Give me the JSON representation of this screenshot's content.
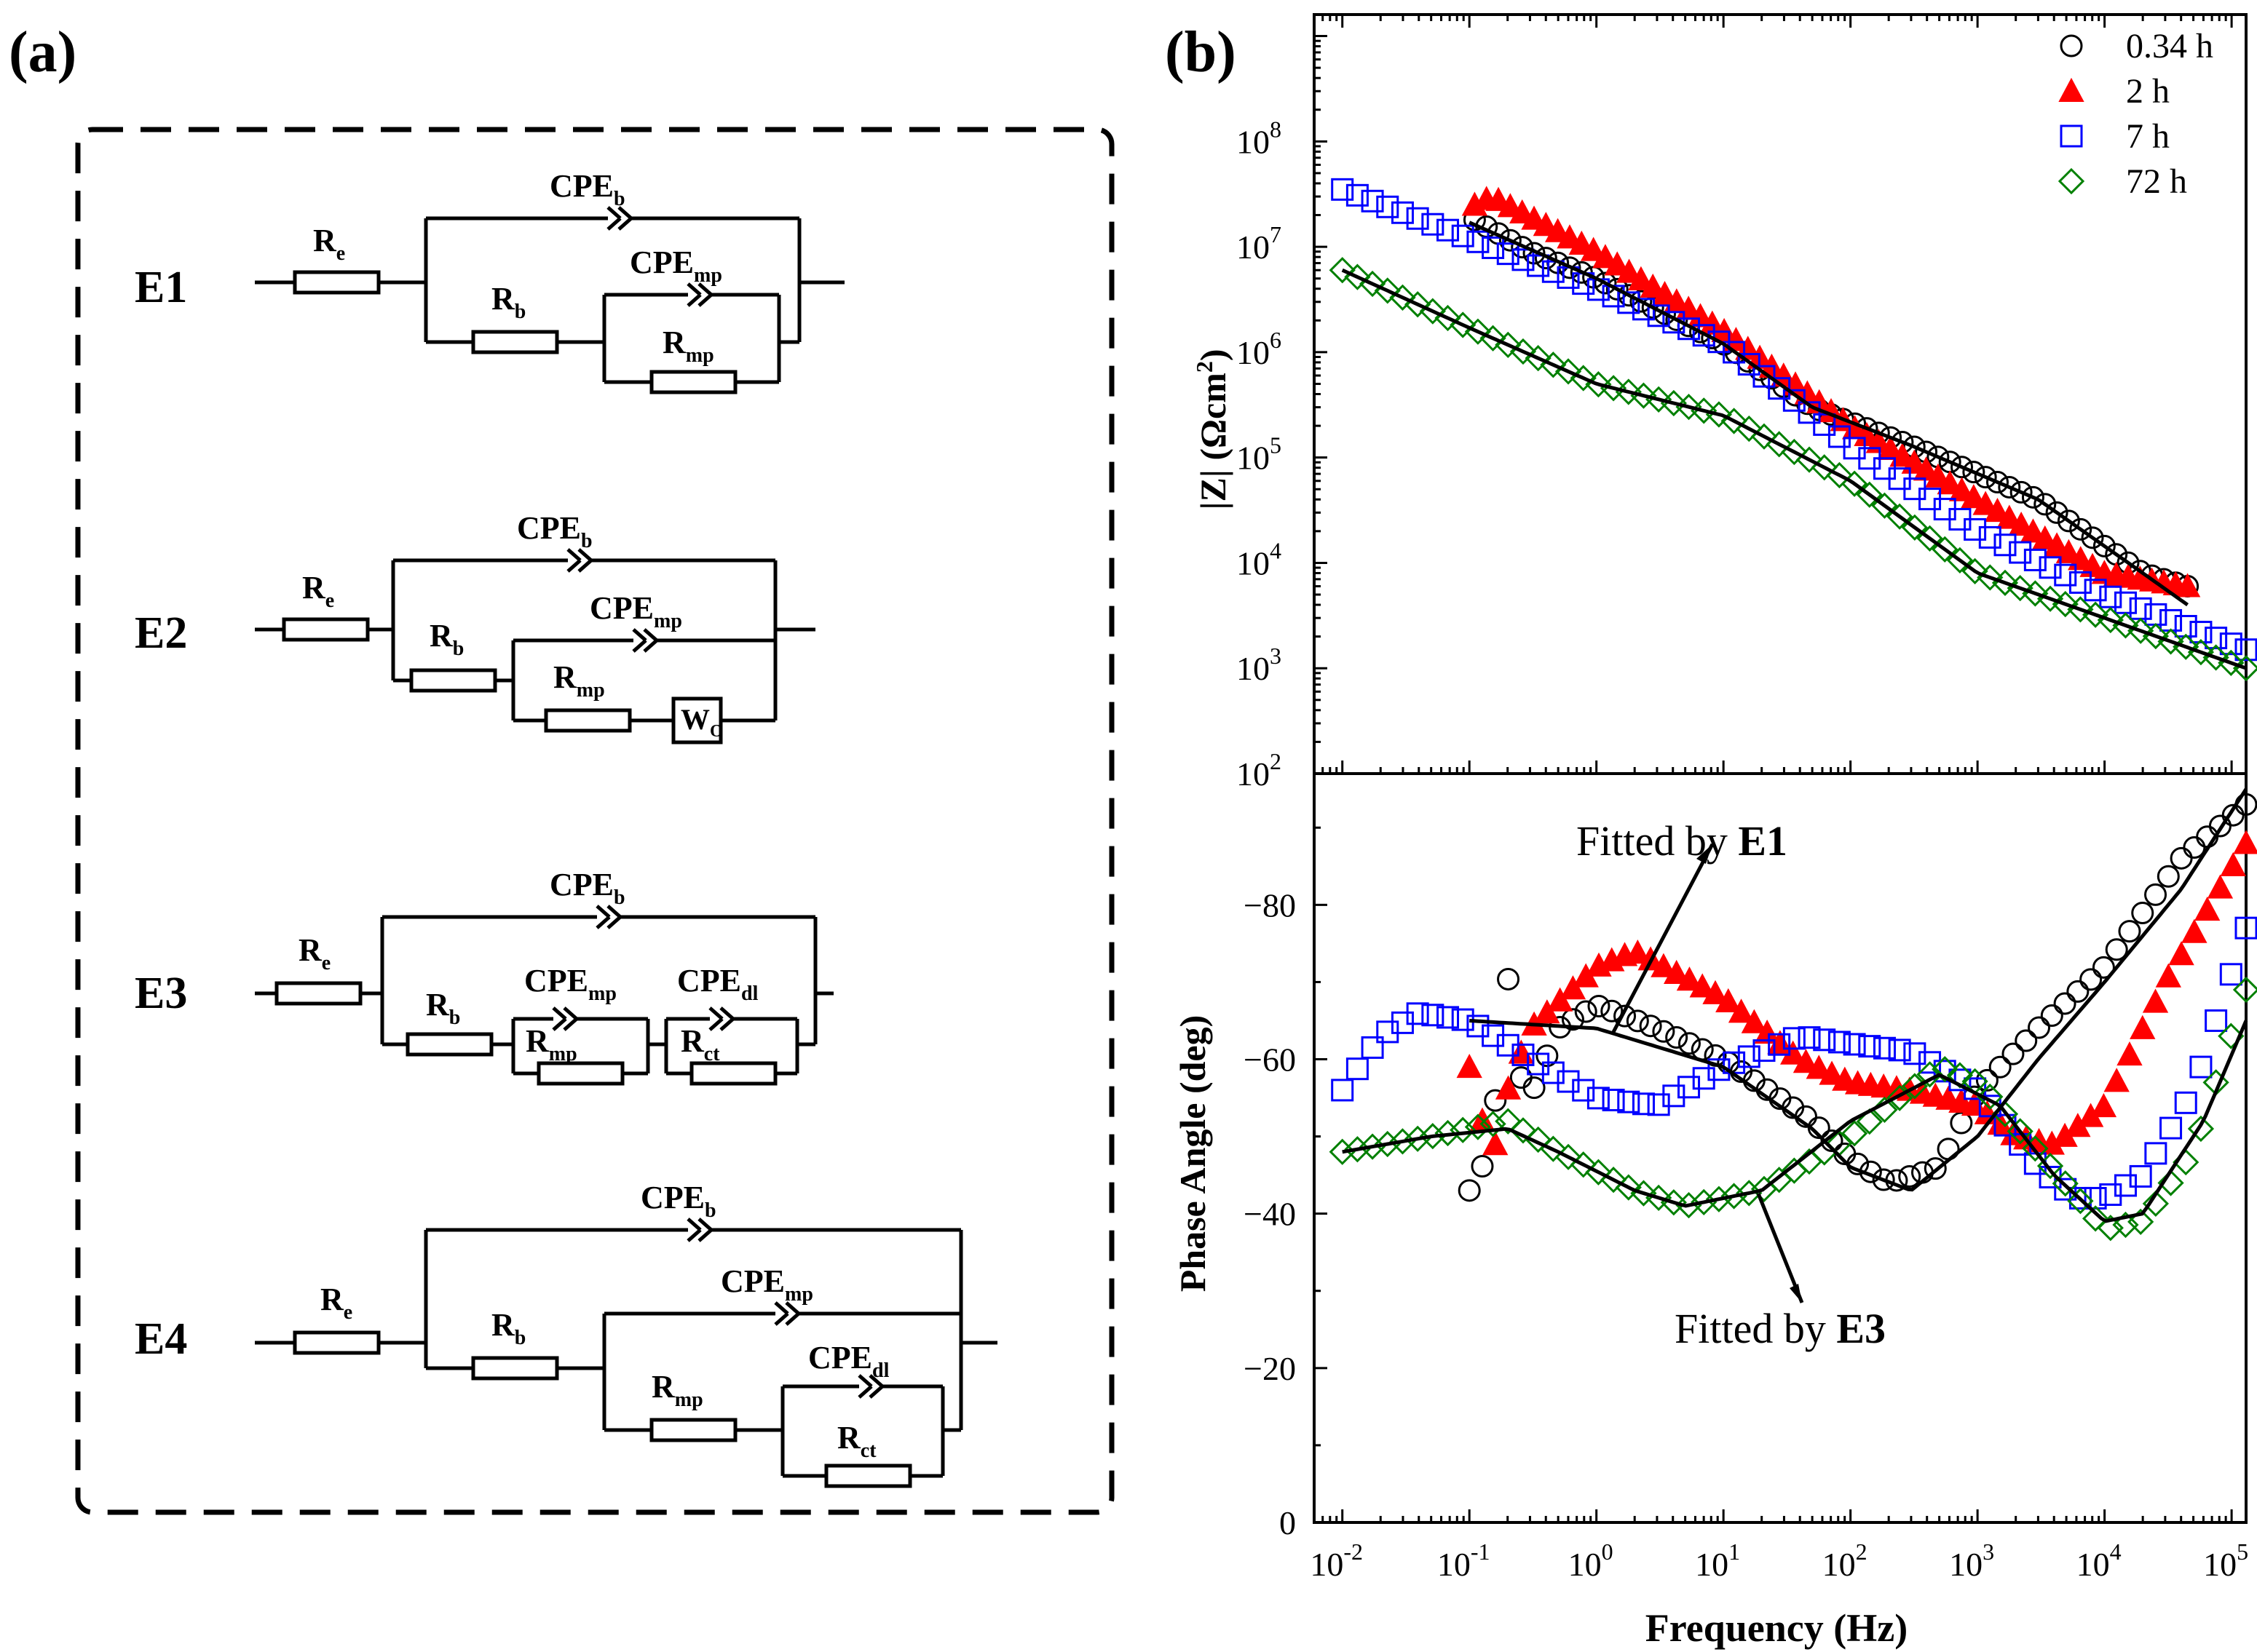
{
  "panel_a": {
    "label": "(a)",
    "circuits": [
      {
        "id": "E1",
        "parts": {
          "re": "R",
          "re_sub": "e",
          "cpeb": "CPE",
          "cpeb_sub": "b",
          "rb": "R",
          "rb_sub": "b",
          "cpemp": "CPE",
          "cpemp_sub": "mp",
          "rmp": "R",
          "rmp_sub": "mp"
        }
      },
      {
        "id": "E2",
        "parts": {
          "re": "R",
          "re_sub": "e",
          "cpeb": "CPE",
          "cpeb_sub": "b",
          "rb": "R",
          "rb_sub": "b",
          "cpemp": "CPE",
          "cpemp_sub": "mp",
          "rmp": "R",
          "rmp_sub": "mp",
          "wo": "W",
          "wo_sub": "O"
        }
      },
      {
        "id": "E3",
        "parts": {
          "re": "R",
          "re_sub": "e",
          "cpeb": "CPE",
          "cpeb_sub": "b",
          "rb": "R",
          "rb_sub": "b",
          "cpemp": "CPE",
          "cpemp_sub": "mp",
          "rmp": "R",
          "rmp_sub": "mp",
          "cpedl": "CPE",
          "cpedl_sub": "dl",
          "rct": "R",
          "rct_sub": "ct"
        }
      },
      {
        "id": "E4",
        "parts": {
          "re": "R",
          "re_sub": "e",
          "cpeb": "CPE",
          "cpeb_sub": "b",
          "rb": "R",
          "rb_sub": "b",
          "cpemp": "CPE",
          "cpemp_sub": "mp",
          "rmp": "R",
          "rmp_sub": "mp",
          "cpedl": "CPE",
          "cpedl_sub": "dl",
          "rct": "R",
          "rct_sub": "ct"
        }
      }
    ]
  },
  "panel_b": {
    "label": "(b)",
    "annotations": {
      "e1": {
        "text": "Fitted by ",
        "bold": "E1"
      },
      "e3": {
        "text": "Fitted by ",
        "bold": "E3"
      }
    }
  },
  "colors": {
    "s034": "#000000",
    "s2": "#ff0000",
    "s7": "#0000ff",
    "s72": "#008000",
    "fit": "#000000"
  },
  "chart_data": [
    {
      "type": "scatter",
      "title": "",
      "xlabel": "Frequency (Hz)",
      "xscale": "log",
      "xlim": [
        0.006,
        130000
      ],
      "ylabel": "|Z| (Ωcm²)",
      "ylabel_parts": {
        "main": "|Z| (Ωcm",
        "sup": "2",
        "end": ")"
      },
      "yscale": "log",
      "ylim": [
        100,
        1600000000.0
      ],
      "yticks": [
        {
          "base": "10",
          "exp": "2",
          "v": 100
        },
        {
          "base": "10",
          "exp": "3",
          "v": 1000
        },
        {
          "base": "10",
          "exp": "4",
          "v": 10000
        },
        {
          "base": "10",
          "exp": "5",
          "v": 100000
        },
        {
          "base": "10",
          "exp": "6",
          "v": 1000000
        },
        {
          "base": "10",
          "exp": "7",
          "v": 10000000
        },
        {
          "base": "10",
          "exp": "8",
          "v": 100000000
        }
      ],
      "legend_position": "top-right",
      "series": [
        {
          "name": "0.34 h",
          "marker": "circle",
          "color": "#000000",
          "fmin": 0.11,
          "fmax": 45000,
          "points": [
            [
              0.11,
              18000000.0
            ],
            [
              0.3,
              9000000.0
            ],
            [
              1,
              5000000.0
            ],
            [
              10,
              1200000.0
            ],
            [
              50,
              300000.0
            ],
            [
              300,
              130000.0
            ],
            [
              3000,
              40000.0
            ],
            [
              20000,
              8000
            ],
            [
              45000,
              6000
            ]
          ]
        },
        {
          "name": "2 h",
          "marker": "triangle",
          "color": "#ff0000",
          "fmin": 0.11,
          "fmax": 45000,
          "points": [
            [
              0.11,
              25000000.0
            ],
            [
              0.15,
              30000000.0
            ],
            [
              1,
              9000000.0
            ],
            [
              10,
              1600000.0
            ],
            [
              100,
              200000.0
            ],
            [
              1000,
              40000.0
            ],
            [
              10000,
              8000
            ],
            [
              45000,
              6000
            ]
          ]
        },
        {
          "name": "7 h",
          "marker": "square",
          "color": "#0000ff",
          "fmin": 0.01,
          "fmax": 130000,
          "points": [
            [
              0.01,
              35000000.0
            ],
            [
              0.1,
              12000000.0
            ],
            [
              1,
              4000000.0
            ],
            [
              10,
              1200000.0
            ],
            [
              100,
              130000.0
            ],
            [
              1000,
              20000.0
            ],
            [
              10000,
              5000
            ],
            [
              130000,
              1500
            ]
          ]
        },
        {
          "name": "72 h",
          "marker": "diamond",
          "color": "#008000",
          "fmin": 0.01,
          "fmax": 130000,
          "points": [
            [
              0.01,
              6000000.0
            ],
            [
              0.1,
              1700000.0
            ],
            [
              1,
              500000.0
            ],
            [
              10,
              250000.0
            ],
            [
              100,
              60000.0
            ],
            [
              1000,
              8000
            ],
            [
              10000,
              3000
            ],
            [
              130000,
              1000
            ]
          ]
        }
      ],
      "fits": [
        {
          "name": "fit 0.34 h",
          "fmin": 0.1,
          "fmax": 45000,
          "points": [
            [
              0.1,
              17000000.0
            ],
            [
              1,
              5000000.0
            ],
            [
              10,
              1200000.0
            ],
            [
              50,
              300000.0
            ],
            [
              300,
              130000.0
            ],
            [
              3000,
              40000.0
            ],
            [
              20000,
              8000
            ],
            [
              45000,
              4000
            ]
          ]
        },
        {
          "name": "fit 72 h",
          "fmin": 0.01,
          "fmax": 130000,
          "points": [
            [
              0.01,
              6000000.0
            ],
            [
              0.1,
              1700000.0
            ],
            [
              1,
              500000.0
            ],
            [
              10,
              250000.0
            ],
            [
              100,
              60000.0
            ],
            [
              1000,
              8000
            ],
            [
              10000,
              3000
            ],
            [
              130000,
              1000
            ]
          ]
        }
      ]
    },
    {
      "type": "scatter",
      "title": "",
      "xlabel": "Frequency (Hz)",
      "xscale": "log",
      "xlim": [
        0.006,
        130000
      ],
      "xticks": [
        {
          "base": "10",
          "exp": "-2",
          "v": 0.01
        },
        {
          "base": "10",
          "exp": "-1",
          "v": 0.1
        },
        {
          "base": "10",
          "exp": "0",
          "v": 1
        },
        {
          "base": "10",
          "exp": "1",
          "v": 10
        },
        {
          "base": "10",
          "exp": "2",
          "v": 100
        },
        {
          "base": "10",
          "exp": "3",
          "v": 1000
        },
        {
          "base": "10",
          "exp": "4",
          "v": 10000
        },
        {
          "base": "10",
          "exp": "5",
          "v": 100000
        }
      ],
      "ylabel": "Phase Angle (deg)",
      "ylim": [
        0,
        -97
      ],
      "yticks": [
        {
          "label": "0",
          "v": 0
        },
        {
          "label": "−20",
          "v": -20
        },
        {
          "label": "−40",
          "v": -40
        },
        {
          "label": "−60",
          "v": -60
        },
        {
          "label": "−80",
          "v": -80
        }
      ],
      "series": [
        {
          "name": "0.34 h",
          "marker": "circle",
          "color": "#000000",
          "fmin": 0.1,
          "fmax": 130000,
          "points": [
            [
              0.11,
              -43
            ],
            [
              0.15,
              -50
            ],
            [
              0.2,
              -71
            ],
            [
              0.25,
              -58
            ],
            [
              0.3,
              -55
            ],
            [
              0.5,
              -64
            ],
            [
              1,
              -67
            ],
            [
              3,
              -64
            ],
            [
              10,
              -60
            ],
            [
              50,
              -52
            ],
            [
              100,
              -47
            ],
            [
              200,
              -44
            ],
            [
              500,
              -46
            ],
            [
              1000,
              -56
            ],
            [
              3000,
              -64
            ],
            [
              10000,
              -72
            ],
            [
              40000,
              -86
            ],
            [
              130000,
              -93
            ]
          ]
        },
        {
          "name": "2 h",
          "marker": "triangle",
          "color": "#ff0000",
          "fmin": 0.1,
          "fmax": 130000,
          "points": [
            [
              0.1,
              -59
            ],
            [
              0.15,
              -47
            ],
            [
              0.2,
              -56
            ],
            [
              0.3,
              -64
            ],
            [
              1,
              -72
            ],
            [
              2,
              -74
            ],
            [
              10,
              -68
            ],
            [
              40,
              -60
            ],
            [
              100,
              -57
            ],
            [
              300,
              -56
            ],
            [
              1000,
              -54
            ],
            [
              2000,
              -50
            ],
            [
              4000,
              -49
            ],
            [
              10000,
              -54
            ],
            [
              30000,
              -70
            ],
            [
              130000,
              -88
            ]
          ]
        },
        {
          "name": "7 h",
          "marker": "square",
          "color": "#0000ff",
          "fmin": 0.01,
          "fmax": 130000,
          "points": [
            [
              0.01,
              -56
            ],
            [
              0.02,
              -63
            ],
            [
              0.04,
              -66
            ],
            [
              0.1,
              -65
            ],
            [
              0.3,
              -60
            ],
            [
              1,
              -55
            ],
            [
              3,
              -54
            ],
            [
              10,
              -59
            ],
            [
              40,
              -63
            ],
            [
              100,
              -62
            ],
            [
              300,
              -61
            ],
            [
              1000,
              -56
            ],
            [
              3000,
              -46
            ],
            [
              6000,
              -42
            ],
            [
              10000,
              -42
            ],
            [
              20000,
              -45
            ],
            [
              50000,
              -56
            ],
            [
              130000,
              -77
            ]
          ]
        },
        {
          "name": "72 h",
          "marker": "diamond",
          "color": "#008000",
          "fmin": 0.01,
          "fmax": 130000,
          "points": [
            [
              0.01,
              -48
            ],
            [
              0.05,
              -50
            ],
            [
              0.2,
              -52
            ],
            [
              0.5,
              -48
            ],
            [
              2,
              -43
            ],
            [
              5,
              -41
            ],
            [
              20,
              -43
            ],
            [
              100,
              -50
            ],
            [
              500,
              -59
            ],
            [
              1000,
              -57
            ],
            [
              3000,
              -48
            ],
            [
              10000,
              -38
            ],
            [
              20000,
              -39
            ],
            [
              50000,
              -48
            ],
            [
              130000,
              -69
            ]
          ]
        }
      ],
      "fits": [
        {
          "name": "fit E1",
          "fmin": 0.1,
          "fmax": 130000,
          "points": [
            [
              0.1,
              -65
            ],
            [
              1,
              -64
            ],
            [
              10,
              -59
            ],
            [
              50,
              -51
            ],
            [
              100,
              -46
            ],
            [
              300,
              -43
            ],
            [
              1000,
              -50
            ],
            [
              3000,
              -60
            ],
            [
              10000,
              -70
            ],
            [
              40000,
              -82
            ],
            [
              130000,
              -95
            ]
          ]
        },
        {
          "name": "fit E3",
          "fmin": 0.01,
          "fmax": 130000,
          "points": [
            [
              0.01,
              -48
            ],
            [
              0.05,
              -50
            ],
            [
              0.2,
              -51
            ],
            [
              0.5,
              -48
            ],
            [
              2,
              -43
            ],
            [
              5,
              -41
            ],
            [
              20,
              -43
            ],
            [
              100,
              -52
            ],
            [
              500,
              -58
            ],
            [
              1500,
              -54
            ],
            [
              4000,
              -45
            ],
            [
              10000,
              -39
            ],
            [
              20000,
              -40
            ],
            [
              60000,
              -52
            ],
            [
              130000,
              -65
            ]
          ]
        }
      ]
    }
  ]
}
